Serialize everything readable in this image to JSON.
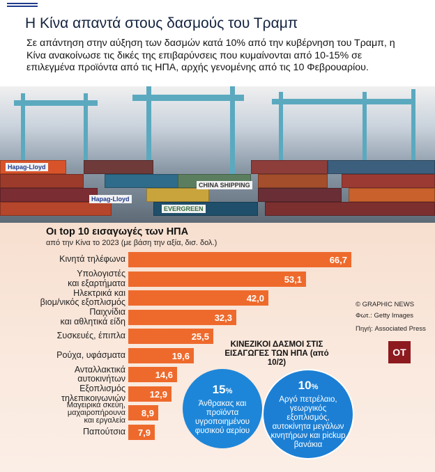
{
  "headline": "Η Κίνα απαντά στους δασμούς του Τραμπ",
  "intro": "Σε απάντηση στην αύξηση των δασμών κατά 10% από την κυβέρνηση του Τραμπ, η Κίνα ανακοίνωσε τις δικές της επιβαρύνσεις που κυμαίνονται από  10-15% σε επιλεγμένα προϊόντα από τις ΗΠΑ, αρχής γενομένης από τις 10 Φεβρουαρίου.",
  "photo_labels": {
    "hapag1": "Hapag-Lloyd",
    "hapag2": "Hapag-Lloyd",
    "china": "CHINA SHIPPING",
    "evergreen": "EVERGREEN"
  },
  "chart_data": {
    "type": "bar",
    "orientation": "horizontal",
    "title": "Οι top 10 εισαγωγές των ΗΠΑ",
    "subtitle": "από την Κίνα το 2023 (με βάση την αξία, δισ. δολ.)",
    "categories": [
      "Κινητά τηλέφωνα",
      "Υπολογιστές και εξαρτήματα",
      "Ηλεκτρικά και βιομ/νικός εξοπλισμός",
      "Παιχνίδια και αθλητικά είδη",
      "Συσκευές, έπιπλα",
      "Ρούχα, υφάσματα",
      "Ανταλλακτικά αυτοκινήτων",
      "Εξοπλισμός τηλεπικοινωνιών",
      "Μαγειρικά σκεύη, μαχαιροπήρουνα και εργαλεία",
      "Παπούτσια"
    ],
    "category_lines": [
      [
        "Κινητά τηλέφωνα"
      ],
      [
        "Υπολογιστές",
        "και εξαρτήματα"
      ],
      [
        "Ηλεκτρικά και",
        "βιομ/νικός εξοπλισμός"
      ],
      [
        "Παιχνίδια",
        "και αθλητικά είδη"
      ],
      [
        "Συσκευές, έπιπλα"
      ],
      [
        "Ρούχα, υφάσματα"
      ],
      [
        "Ανταλλακτικά",
        "αυτοκινήτων"
      ],
      [
        "Εξοπλισμός",
        "τηλεπικοινωνιών"
      ],
      [
        "Μαγειρικά σκεύη,",
        "μαχαιροπήρουνα",
        "και εργαλεία"
      ],
      [
        "Παπούτσια"
      ]
    ],
    "values": [
      66.7,
      53.1,
      42.0,
      32.3,
      25.5,
      19.6,
      14.6,
      12.9,
      8.9,
      7.9
    ],
    "value_labels": [
      "66,7",
      "53,1",
      "42,0",
      "32,3",
      "25,5",
      "19,6",
      "14,6",
      "12,9",
      "8,9",
      "7,9"
    ],
    "bar_color": "#ee6a2c",
    "xlim": [
      0,
      66.7
    ]
  },
  "credits": {
    "graphic": "© GRAPHIC NEWS",
    "photo": "Φωτ.: Getty Images",
    "source": "Πηγή: Associated Press"
  },
  "logo": "ΟΤ",
  "tariffs": {
    "title": "ΚΙΝΕΖΙΚΟΙ ΔΑΣΜΟΙ ΣΤΙΣ ΕΙΣΑΓΩΓΕΣ ΤΩΝ ΗΠΑ (από 10/2)",
    "items": [
      {
        "value": "15",
        "unit": "%",
        "text": "Άνθρακας και προϊόντα υγροποιημένου φυσικού αερίου",
        "color": "#1e86d8"
      },
      {
        "value": "10",
        "unit": "%",
        "text": "Αργό πετρέλαιο, γεωργικός εξοπλισμός, αυτοκίνητα μεγάλων κινητήρων και pickup βανάκια",
        "color": "#1c7fd4"
      }
    ]
  }
}
